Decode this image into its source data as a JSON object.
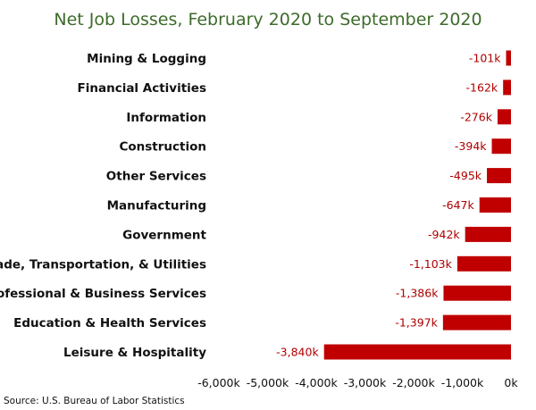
{
  "chart_data": {
    "type": "bar",
    "orientation": "horizontal",
    "title": "Net Job Losses, February 2020 to September 2020",
    "categories": [
      "Mining & Logging",
      "Financial Activities",
      "Information",
      "Construction",
      "Other Services",
      "Manufacturing",
      "Government",
      "Trade, Transportation, & Utilities",
      "Professional & Business Services",
      "Education & Health Services",
      "Leisure & Hospitality"
    ],
    "values": [
      -101,
      -162,
      -276,
      -394,
      -495,
      -647,
      -942,
      -1103,
      -1386,
      -1397,
      -3840
    ],
    "value_labels": [
      "-101k",
      "-162k",
      "-276k",
      "-394k",
      "-495k",
      "-647k",
      "-942k",
      "-1,103k",
      "-1,386k",
      "-1,397k",
      "-3,840k"
    ],
    "unit": "thousands of jobs",
    "xlim": [
      -6000,
      0
    ],
    "xticks": [
      -6000,
      -5000,
      -4000,
      -3000,
      -2000,
      -1000,
      0
    ],
    "xtick_labels": [
      "-6,000k",
      "-5,000k",
      "-4,000k",
      "-3,000k",
      "-2,000k",
      "-1,000k",
      "0k"
    ],
    "grid": false,
    "legend": "none",
    "bar_color": "#c00000",
    "label_color": "#b00000",
    "title_color": "#3d6b2a"
  },
  "source": "Source: U.S. Bureau of Labor Statistics"
}
